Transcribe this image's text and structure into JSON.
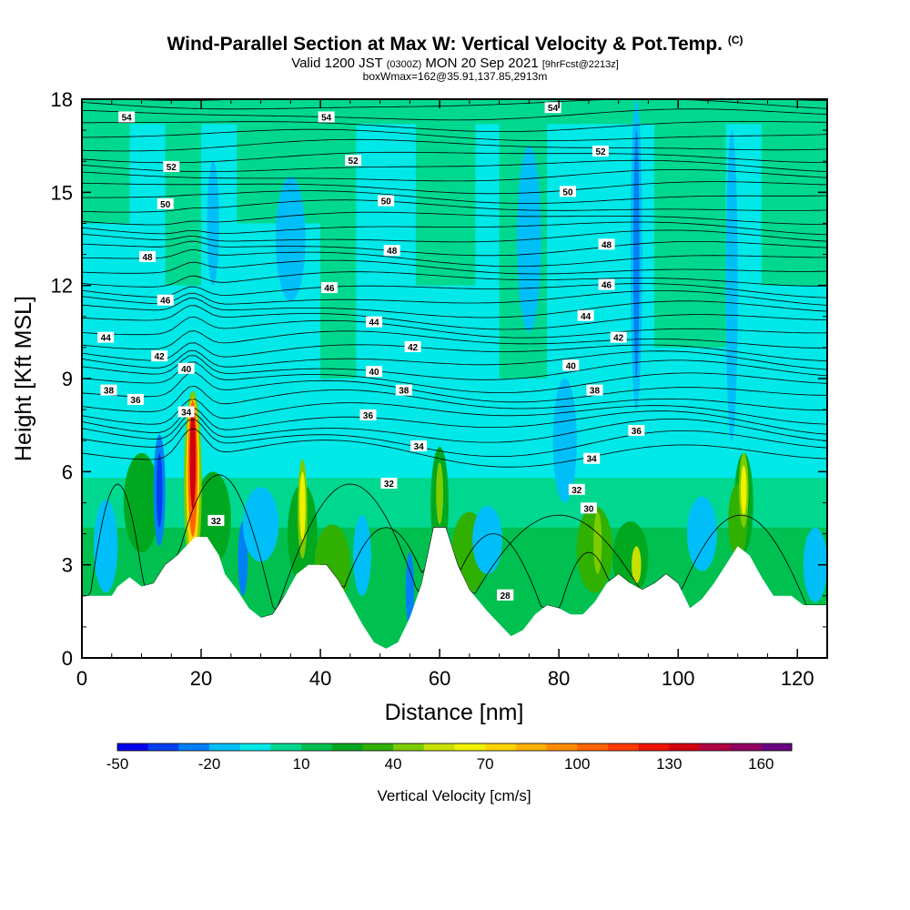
{
  "header": {
    "title_main": "Wind-Parallel Section at Max W: Vertical Velocity & Pot.Temp.",
    "title_mark": "(C)",
    "valid_a": "Valid 1200 JST",
    "valid_b": "(0300Z)",
    "valid_c": "MON 20 Sep 2021",
    "valid_d": "[9hrFcst@2213z]",
    "box_info": "boxWmax=162@35.91,137.85,2913m"
  },
  "chart_data": {
    "type": "heatmap",
    "xlabel": "Distance [nm]",
    "ylabel": "Height [Kft MSL]",
    "xlim": [
      0,
      125
    ],
    "ylim": [
      0,
      18
    ],
    "x_ticks": [
      "0",
      "20",
      "40",
      "60",
      "80",
      "100",
      "120"
    ],
    "y_ticks": [
      "0",
      "3",
      "6",
      "9",
      "12",
      "15",
      "18"
    ],
    "colorbar": {
      "label": "Vertical Velocity [cm/s]",
      "levels": [
        -50,
        -40,
        -30,
        -20,
        -10,
        0,
        10,
        20,
        30,
        40,
        50,
        60,
        70,
        80,
        90,
        100,
        110,
        120,
        130,
        140,
        150,
        160,
        170
      ],
      "tick_labels": [
        "-50",
        "-20",
        "10",
        "40",
        "70",
        "100",
        "130",
        "160"
      ],
      "colors": [
        "#0000ee",
        "#0040f0",
        "#0080f5",
        "#00bff8",
        "#00e8e8",
        "#00d890",
        "#00c050",
        "#00a820",
        "#30b000",
        "#7dcc00",
        "#c8e000",
        "#f0f000",
        "#ffd400",
        "#ffb000",
        "#ff8c00",
        "#ff6400",
        "#ff3c00",
        "#ee1400",
        "#d00010",
        "#b00040",
        "#900060",
        "#6a0080"
      ]
    },
    "terrain_kft": [
      [
        0,
        2
      ],
      [
        5,
        2
      ],
      [
        6,
        2.3
      ],
      [
        8,
        2.6
      ],
      [
        10,
        2.3
      ],
      [
        12,
        2.4
      ],
      [
        14,
        3
      ],
      [
        16,
        3.3
      ],
      [
        18,
        3.7
      ],
      [
        19,
        3.9
      ],
      [
        21,
        3.9
      ],
      [
        23,
        3.3
      ],
      [
        24,
        2.7
      ],
      [
        26,
        2.2
      ],
      [
        28,
        1.6
      ],
      [
        30,
        1.3
      ],
      [
        32,
        1.4
      ],
      [
        34,
        2
      ],
      [
        36,
        2.7
      ],
      [
        38,
        3
      ],
      [
        41,
        3
      ],
      [
        43,
        2.5
      ],
      [
        45,
        1.8
      ],
      [
        47,
        1.1
      ],
      [
        49,
        0.5
      ],
      [
        51,
        0.3
      ],
      [
        53,
        0.5
      ],
      [
        55,
        1.3
      ],
      [
        57,
        2.4
      ],
      [
        59,
        4.2
      ],
      [
        61,
        4.2
      ],
      [
        63,
        3
      ],
      [
        65,
        2.2
      ],
      [
        68,
        1.5
      ],
      [
        70,
        1.1
      ],
      [
        72,
        0.7
      ],
      [
        74,
        0.9
      ],
      [
        76,
        1.4
      ],
      [
        78,
        1.7
      ],
      [
        80,
        1.6
      ],
      [
        82,
        1.4
      ],
      [
        84,
        1.4
      ],
      [
        86,
        1.8
      ],
      [
        88,
        2.4
      ],
      [
        90,
        2.7
      ],
      [
        92,
        2.4
      ],
      [
        94,
        2.2
      ],
      [
        96,
        2.4
      ],
      [
        98,
        2.7
      ],
      [
        100,
        2.4
      ],
      [
        102,
        1.6
      ],
      [
        104,
        1.9
      ],
      [
        106,
        2.4
      ],
      [
        108,
        3
      ],
      [
        110,
        3.6
      ],
      [
        112,
        3.3
      ],
      [
        114,
        2.6
      ],
      [
        116,
        2
      ],
      [
        119,
        2
      ],
      [
        121,
        1.7
      ],
      [
        125,
        1.7
      ]
    ],
    "contour_labels": [
      {
        "text": "54",
        "x": 7.5,
        "y": 17.4
      },
      {
        "text": "54",
        "x": 41,
        "y": 17.4
      },
      {
        "text": "54",
        "x": 79,
        "y": 17.7
      },
      {
        "text": "52",
        "x": 15,
        "y": 15.8
      },
      {
        "text": "52",
        "x": 45.5,
        "y": 16
      },
      {
        "text": "52",
        "x": 87,
        "y": 16.3
      },
      {
        "text": "50",
        "x": 14,
        "y": 14.6
      },
      {
        "text": "50",
        "x": 51,
        "y": 14.7
      },
      {
        "text": "50",
        "x": 81.5,
        "y": 15
      },
      {
        "text": "48",
        "x": 11,
        "y": 12.9
      },
      {
        "text": "48",
        "x": 52,
        "y": 13.1
      },
      {
        "text": "48",
        "x": 88,
        "y": 13.3
      },
      {
        "text": "46",
        "x": 14,
        "y": 11.5
      },
      {
        "text": "46",
        "x": 41.5,
        "y": 11.9
      },
      {
        "text": "46",
        "x": 88,
        "y": 12
      },
      {
        "text": "44",
        "x": 4,
        "y": 10.3
      },
      {
        "text": "44",
        "x": 49,
        "y": 10.8
      },
      {
        "text": "44",
        "x": 84.5,
        "y": 11
      },
      {
        "text": "42",
        "x": 13,
        "y": 9.7
      },
      {
        "text": "42",
        "x": 55.5,
        "y": 10
      },
      {
        "text": "42",
        "x": 90,
        "y": 10.3
      },
      {
        "text": "40",
        "x": 17.5,
        "y": 9.3
      },
      {
        "text": "40",
        "x": 49,
        "y": 9.2
      },
      {
        "text": "40",
        "x": 82,
        "y": 9.4
      },
      {
        "text": "38",
        "x": 4.5,
        "y": 8.6
      },
      {
        "text": "38",
        "x": 54,
        "y": 8.6
      },
      {
        "text": "38",
        "x": 86,
        "y": 8.6
      },
      {
        "text": "36",
        "x": 9,
        "y": 8.3
      },
      {
        "text": "36",
        "x": 48,
        "y": 7.8
      },
      {
        "text": "36",
        "x": 93,
        "y": 7.3
      },
      {
        "text": "34",
        "x": 17.5,
        "y": 7.9
      },
      {
        "text": "34",
        "x": 56.5,
        "y": 6.8
      },
      {
        "text": "34",
        "x": 85.5,
        "y": 6.4
      },
      {
        "text": "32",
        "x": 51.5,
        "y": 5.6
      },
      {
        "text": "32",
        "x": 83,
        "y": 5.4
      },
      {
        "text": "32",
        "x": 22.5,
        "y": 4.4
      },
      {
        "text": "30",
        "x": 85,
        "y": 4.8
      },
      {
        "text": "28",
        "x": 71,
        "y": 2
      },
      {
        "text": "28",
        "x": 71,
        "y": 2
      }
    ]
  }
}
